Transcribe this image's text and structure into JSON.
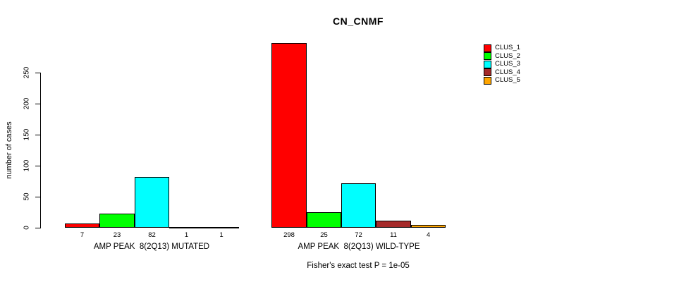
{
  "chart_data": {
    "type": "bar",
    "title": "CN_CNMF",
    "ylabel": "number of cases",
    "xlabel": "",
    "ylim": [
      0,
      250
    ],
    "yticks": [
      0,
      50,
      100,
      150,
      200,
      250
    ],
    "grid": false,
    "legend_position": "right",
    "categories": [
      "AMP PEAK  8(2Q13) MUTATED",
      "AMP PEAK  8(2Q13) WILD-TYPE"
    ],
    "series": [
      {
        "name": "CLUS_1",
        "color": "#FF0000",
        "values": [
          7,
          298
        ]
      },
      {
        "name": "CLUS_2",
        "color": "#00FF00",
        "values": [
          23,
          25
        ]
      },
      {
        "name": "CLUS_3",
        "color": "#00FFFF",
        "values": [
          82,
          72
        ]
      },
      {
        "name": "CLUS_4",
        "color": "#A52A2A",
        "values": [
          1,
          11
        ]
      },
      {
        "name": "CLUS_5",
        "color": "#FFA500",
        "values": [
          1,
          4
        ]
      }
    ],
    "bar_value_labels": {
      "AMP PEAK  8(2Q13) MUTATED": [
        7,
        23,
        82,
        1,
        1
      ],
      "AMP PEAK  8(2Q13) WILD-TYPE": [
        298,
        25,
        72,
        11,
        4
      ]
    },
    "annotation": "Fisher's exact test P = 1e-05"
  }
}
